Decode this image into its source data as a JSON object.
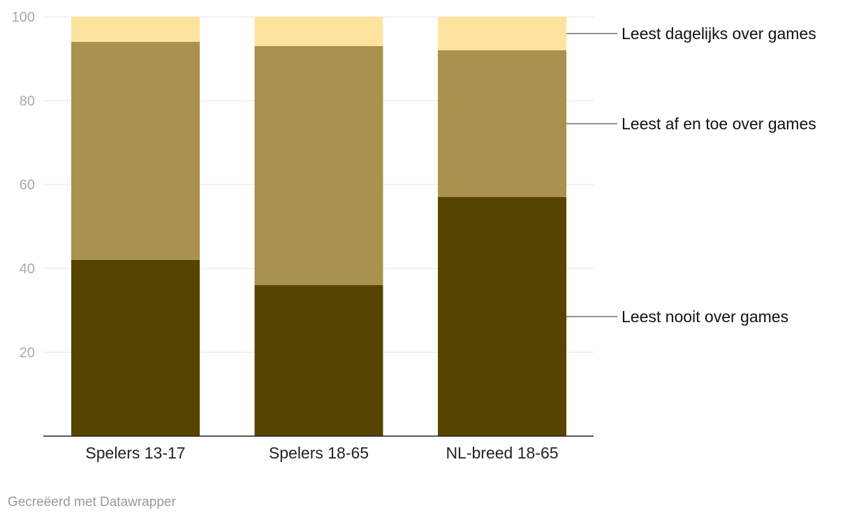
{
  "chart_data": {
    "type": "bar",
    "stacked": true,
    "title": "",
    "xlabel": "",
    "ylabel": "",
    "ylim": [
      0,
      100
    ],
    "yticks": [
      20,
      40,
      60,
      80,
      100
    ],
    "grid": true,
    "categories": [
      "Spelers 13-17",
      "Spelers 18-65",
      "NL-breed 18-65"
    ],
    "series": [
      {
        "name": "Leest nooit over games",
        "color": "#564500",
        "values": [
          42,
          36,
          57
        ]
      },
      {
        "name": "Leest af en toe over games",
        "color": "#a8924d",
        "values": [
          52,
          57,
          35
        ]
      },
      {
        "name": "Leest dagelijks over games",
        "color": "#fde39d",
        "values": [
          6,
          7,
          8
        ]
      }
    ],
    "legend_placement": "right, labels aligned with last bar segments"
  },
  "footer": {
    "credit": "Gecreëerd met Datawrapper"
  }
}
